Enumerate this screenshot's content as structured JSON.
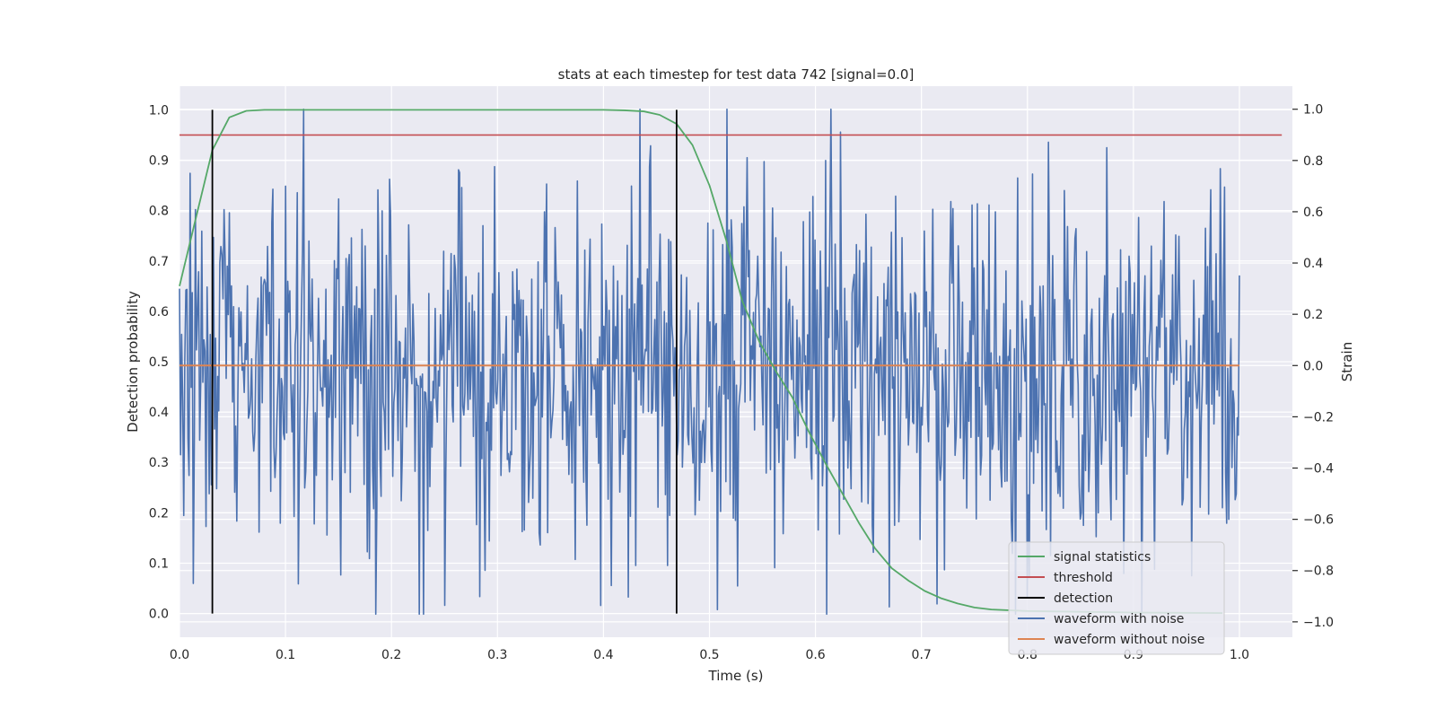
{
  "chart_data": {
    "type": "line",
    "title": "stats at each timestep for test data 742 [signal=0.0]",
    "xlabel": "Time (s)",
    "ylabel_left": "Detection probability",
    "ylabel_right": "Strain",
    "xlim": [
      0.0,
      1.05
    ],
    "ylim_left": [
      -0.047,
      1.047
    ],
    "ylim_right": [
      -1.06,
      1.09
    ],
    "x_ticks": [
      "0.0",
      "0.1",
      "0.2",
      "0.3",
      "0.4",
      "0.5",
      "0.6",
      "0.7",
      "0.8",
      "0.9",
      "1.0"
    ],
    "y_ticks_left": [
      "0.0",
      "0.1",
      "0.2",
      "0.3",
      "0.4",
      "0.5",
      "0.6",
      "0.7",
      "0.8",
      "0.9",
      "1.0"
    ],
    "y_ticks_right": [
      "−1.0",
      "−0.8",
      "−0.6",
      "−0.4",
      "−0.2",
      "0.0",
      "0.2",
      "0.4",
      "0.6",
      "0.8",
      "1.0"
    ],
    "grid": true,
    "legend_position": "lower-right",
    "series": [
      {
        "name": "signal statistics",
        "axis": "left",
        "color": "#55a868",
        "x": [
          0.0,
          0.016,
          0.031,
          0.047,
          0.063,
          0.08,
          0.1,
          0.2,
          0.3,
          0.4,
          0.42,
          0.438,
          0.453,
          0.469,
          0.484,
          0.5,
          0.516,
          0.531,
          0.547,
          0.563,
          0.578,
          0.594,
          0.609,
          0.625,
          0.641,
          0.656,
          0.672,
          0.688,
          0.703,
          0.719,
          0.734,
          0.75,
          0.766,
          0.8,
          0.9,
          0.984
        ],
        "y": [
          0.65,
          0.79,
          0.92,
          0.985,
          0.998,
          1.0,
          1.0,
          1.0,
          1.0,
          1.0,
          0.999,
          0.997,
          0.99,
          0.972,
          0.93,
          0.85,
          0.74,
          0.62,
          0.54,
          0.48,
          0.43,
          0.36,
          0.3,
          0.24,
          0.18,
          0.13,
          0.09,
          0.065,
          0.045,
          0.03,
          0.02,
          0.012,
          0.008,
          0.005,
          0.002,
          0.001
        ]
      },
      {
        "name": "threshold",
        "axis": "left",
        "color": "#c44e52",
        "x": [
          0.0,
          1.04
        ],
        "y": [
          0.95,
          0.95
        ]
      },
      {
        "name": "detection",
        "axis": "left",
        "color": "#000000",
        "x": [
          0.031,
          0.469
        ],
        "y_range": [
          0.0,
          1.0
        ]
      },
      {
        "name": "waveform with noise",
        "axis": "right",
        "color": "#4c72b0",
        "x_range": [
          0.0,
          1.0
        ],
        "points": 1000,
        "y_min": -0.97,
        "y_max": 1.0,
        "approx_std": 0.35,
        "y_peaks": [
          {
            "x": 0.0,
            "y": 0.3
          },
          {
            "x": 0.01,
            "y": 0.75
          },
          {
            "x": 0.013,
            "y": -0.85
          },
          {
            "x": 0.028,
            "y": -0.5
          },
          {
            "x": 0.032,
            "y": 0.5
          },
          {
            "x": 0.075,
            "y": -0.65
          },
          {
            "x": 0.1,
            "y": 0.7
          },
          {
            "x": 0.15,
            "y": 0.65
          },
          {
            "x": 0.23,
            "y": -0.97
          },
          {
            "x": 0.34,
            "y": -0.7
          },
          {
            "x": 0.375,
            "y": 0.72
          },
          {
            "x": 0.43,
            "y": -0.78
          },
          {
            "x": 0.46,
            "y": -0.78
          },
          {
            "x": 0.517,
            "y": 1.0
          },
          {
            "x": 0.527,
            "y": -0.86
          },
          {
            "x": 0.61,
            "y": 0.8
          },
          {
            "x": 0.715,
            "y": -0.93
          },
          {
            "x": 0.8,
            "y": -0.9
          },
          {
            "x": 0.875,
            "y": 0.85
          },
          {
            "x": 0.955,
            "y": -0.82
          },
          {
            "x": 0.99,
            "y": -0.6
          }
        ]
      },
      {
        "name": "waveform without noise",
        "axis": "right",
        "color": "#dd8452",
        "x": [
          0.0,
          1.0
        ],
        "y": [
          0.0,
          0.0
        ]
      }
    ]
  }
}
